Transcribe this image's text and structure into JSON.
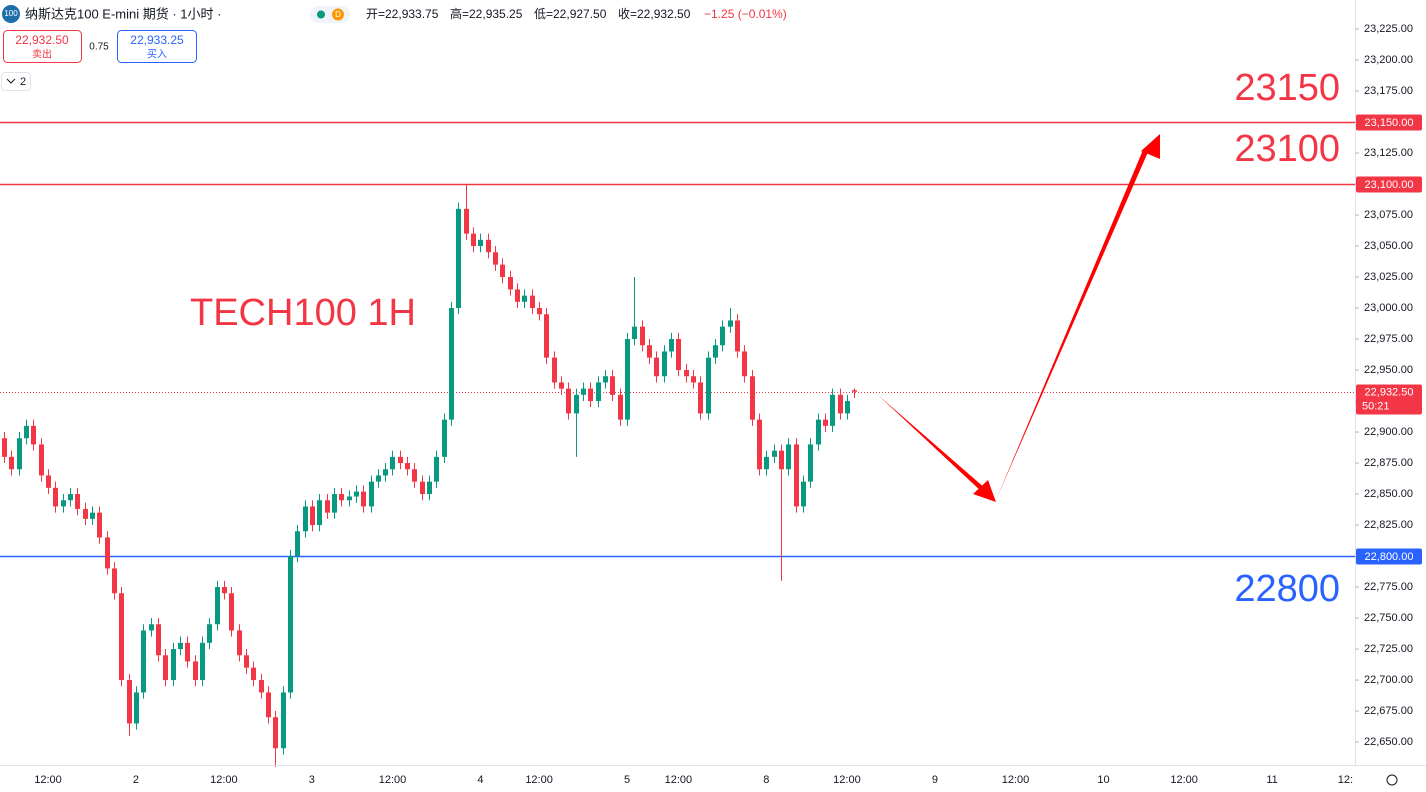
{
  "header": {
    "icon": "100",
    "title": "纳斯达克100 E-mini 期货 · 1小时 ·",
    "badge": "D",
    "ohlc": [
      "开=22,933.75",
      "高=22,935.25",
      "低=22,927.50",
      "收=22,932.50"
    ],
    "change": "−1.25 (−0.01%)",
    "sell_price": "22,932.50",
    "sell_label": "卖出",
    "spread": "0.75",
    "buy_price": "22,933.25",
    "buy_label": "买入",
    "indicators": "2"
  },
  "chart_data": {
    "type": "candlestick",
    "up_color": "#089981",
    "down_color": "#f23645",
    "annotations": [
      "TECH100 1H",
      "23150",
      "23100",
      "22800"
    ],
    "categories": [
      null,
      null,
      null,
      null,
      null,
      null,
      "12:00",
      null,
      null,
      null,
      null,
      null,
      null,
      null,
      null,
      null,
      null,
      null,
      "2",
      null,
      null,
      null,
      null,
      null,
      null,
      null,
      null,
      null,
      null,
      null,
      "12:00",
      null,
      null,
      null,
      null,
      null,
      null,
      null,
      null,
      null,
      null,
      null,
      "3",
      null,
      null,
      null,
      null,
      null,
      null,
      null,
      null,
      null,
      null,
      "12:00",
      null,
      null,
      null,
      null,
      null,
      null,
      null,
      null,
      null,
      null,
      null,
      "4",
      null,
      null,
      null,
      null,
      null,
      null,
      null,
      "12:00",
      null,
      null,
      null,
      null,
      null,
      null,
      null,
      null,
      null,
      null,
      null,
      "5",
      null,
      null,
      null,
      null,
      null,
      null,
      "12:00",
      null,
      null,
      null,
      null,
      null,
      null,
      null,
      null,
      null,
      null,
      null,
      "8",
      null,
      null,
      null,
      null,
      null,
      null,
      null,
      null,
      null,
      null,
      "12:00",
      null,
      null,
      null,
      null,
      null,
      null,
      null,
      null,
      null,
      null,
      null,
      "9",
      null,
      null,
      null,
      null,
      null,
      null,
      null,
      null,
      null,
      null,
      "12:00",
      null,
      null,
      null,
      null,
      null,
      null,
      null,
      null,
      null,
      null,
      null,
      "10",
      null,
      null,
      null,
      null,
      null,
      null,
      null,
      null,
      null,
      null,
      "12:00",
      null,
      null,
      null,
      null,
      null,
      null,
      null,
      null,
      null,
      null,
      null,
      "11",
      null,
      null,
      null,
      null,
      null,
      null,
      null,
      null,
      null,
      "12:",
      null
    ],
    "open": [
      22895,
      22880,
      22870,
      22895,
      22905,
      22890,
      22865,
      22855,
      22840,
      22845,
      22850,
      22838,
      22830,
      22835,
      22815,
      22790,
      22770,
      22700,
      22665,
      22690,
      22740,
      22745,
      22720,
      22700,
      22725,
      22730,
      22715,
      22700,
      22730,
      22745,
      22775,
      22770,
      22740,
      22720,
      22710,
      22700,
      22690,
      22670,
      22645,
      22690,
      22800,
      22820,
      22840,
      22825,
      22845,
      22835,
      22850,
      22845,
      22848,
      22852,
      22840,
      22860,
      22865,
      22870,
      22880,
      22875,
      22870,
      22860,
      22850,
      22860,
      22880,
      22910,
      23000,
      23080,
      23060,
      23050,
      23055,
      23045,
      23035,
      23025,
      23015,
      23005,
      23010,
      23000,
      22995,
      22960,
      22940,
      22935,
      22915,
      22930,
      22935,
      22925,
      22940,
      22945,
      22930,
      22910,
      22975,
      22985,
      22970,
      22960,
      22945,
      22965,
      22975,
      22950,
      22945,
      22940,
      22915,
      22960,
      22970,
      22985,
      22990,
      22965,
      22945,
      22910,
      22870,
      22880,
      22885,
      22870,
      22890,
      22840,
      22860,
      22890,
      22910,
      22905,
      22930,
      22915,
      22933.75,
      null,
      null,
      null,
      null,
      null,
      null,
      null,
      null,
      null,
      null,
      null,
      null,
      null,
      null,
      null,
      null,
      null,
      null,
      null,
      null,
      null,
      null,
      null,
      null,
      null,
      null,
      null,
      null,
      null,
      null,
      null,
      null,
      null,
      null,
      null,
      null,
      null,
      null,
      null,
      null,
      null,
      null,
      null,
      null,
      null,
      null,
      null,
      null,
      null,
      null,
      null,
      null,
      null,
      null,
      null,
      null,
      null,
      null,
      null,
      null,
      null,
      null,
      null,
      null,
      null,
      null,
      null,
      null
    ],
    "high": [
      22900,
      22885,
      22900,
      22910,
      22910,
      22895,
      22870,
      22860,
      22850,
      22855,
      22855,
      22843,
      22840,
      22840,
      22820,
      22795,
      22775,
      22705,
      22695,
      22745,
      22750,
      22750,
      22725,
      22730,
      22735,
      22735,
      22720,
      22735,
      22750,
      22780,
      22780,
      22775,
      22745,
      22725,
      22715,
      22705,
      22695,
      22675,
      22695,
      22805,
      22825,
      22845,
      22845,
      22850,
      22850,
      22855,
      22855,
      22853,
      22857,
      22857,
      22865,
      22870,
      22875,
      22885,
      22885,
      22880,
      22875,
      22865,
      22865,
      22885,
      22915,
      23005,
      23085,
      23100,
      23065,
      23060,
      23060,
      23050,
      23040,
      23030,
      23020,
      23015,
      23015,
      23005,
      23000,
      22965,
      22945,
      22940,
      22935,
      22940,
      22940,
      22945,
      22950,
      22950,
      22935,
      22980,
      23025,
      22990,
      22975,
      22965,
      22970,
      22980,
      22980,
      22955,
      22950,
      22945,
      22965,
      22975,
      22990,
      23000,
      22995,
      22970,
      22950,
      22915,
      22885,
      22890,
      22890,
      22895,
      22895,
      22865,
      22895,
      22915,
      22915,
      22935,
      22935,
      22930,
      22935.25,
      null,
      null,
      null,
      null,
      null,
      null,
      null,
      null,
      null,
      null,
      null,
      null,
      null,
      null,
      null,
      null,
      null,
      null,
      null,
      null,
      null,
      null,
      null,
      null,
      null,
      null,
      null,
      null,
      null,
      null,
      null,
      null,
      null,
      null,
      null,
      null,
      null,
      null,
      null,
      null,
      null,
      null,
      null,
      null,
      null,
      null,
      null,
      null,
      null,
      null,
      null,
      null,
      null,
      null,
      null,
      null,
      null,
      null,
      null,
      null,
      null,
      null,
      null,
      null,
      null,
      null,
      null,
      null
    ],
    "low": [
      22875,
      22865,
      22865,
      22890,
      22885,
      22860,
      22850,
      22835,
      22835,
      22840,
      22833,
      22825,
      22825,
      22810,
      22785,
      22765,
      22695,
      22655,
      22660,
      22685,
      22735,
      22715,
      22695,
      22695,
      22720,
      22710,
      22695,
      22695,
      22725,
      22740,
      22765,
      22735,
      22715,
      22705,
      22695,
      22685,
      22665,
      22630,
      22640,
      22685,
      22795,
      22815,
      22820,
      22820,
      22830,
      22830,
      22840,
      22840,
      22843,
      22835,
      22835,
      22855,
      22860,
      22865,
      22870,
      22865,
      22855,
      22845,
      22845,
      22855,
      22875,
      22905,
      22995,
      23055,
      23045,
      23045,
      23040,
      23030,
      23020,
      23010,
      23000,
      23000,
      22995,
      22990,
      22955,
      22935,
      22930,
      22910,
      22880,
      22925,
      22920,
      22920,
      22935,
      22925,
      22905,
      22905,
      22970,
      22965,
      22955,
      22940,
      22940,
      22960,
      22945,
      22940,
      22935,
      22910,
      22910,
      22955,
      22965,
      22980,
      22960,
      22940,
      22905,
      22865,
      22865,
      22875,
      22780,
      22865,
      22835,
      22835,
      22855,
      22885,
      22900,
      22900,
      22910,
      22910,
      22927.5,
      null,
      null,
      null,
      null,
      null,
      null,
      null,
      null,
      null,
      null,
      null,
      null,
      null,
      null,
      null,
      null,
      null,
      null,
      null,
      null,
      null,
      null,
      null,
      null,
      null,
      null,
      null,
      null,
      null,
      null,
      null,
      null,
      null,
      null,
      null,
      null,
      null,
      null,
      null,
      null,
      null,
      null,
      null,
      null,
      null,
      null,
      null,
      null,
      null,
      null,
      null,
      null,
      null,
      null,
      null,
      null,
      null,
      null,
      null,
      null,
      null,
      null,
      null,
      null,
      null,
      null,
      null,
      null
    ],
    "close": [
      22880,
      22870,
      22895,
      22905,
      22890,
      22865,
      22855,
      22840,
      22845,
      22850,
      22838,
      22830,
      22835,
      22815,
      22790,
      22770,
      22700,
      22665,
      22690,
      22740,
      22745,
      22720,
      22700,
      22725,
      22730,
      22715,
      22700,
      22730,
      22745,
      22775,
      22770,
      22740,
      22720,
      22710,
      22700,
      22690,
      22670,
      22645,
      22690,
      22800,
      22820,
      22840,
      22825,
      22845,
      22835,
      22850,
      22845,
      22848,
      22852,
      22840,
      22860,
      22865,
      22870,
      22880,
      22875,
      22870,
      22860,
      22850,
      22860,
      22880,
      22910,
      23000,
      23080,
      23060,
      23050,
      23055,
      23045,
      23035,
      23025,
      23015,
      23005,
      23010,
      23000,
      22995,
      22960,
      22940,
      22935,
      22915,
      22930,
      22935,
      22925,
      22940,
      22945,
      22930,
      22910,
      22975,
      22985,
      22970,
      22960,
      22945,
      22965,
      22975,
      22950,
      22945,
      22940,
      22915,
      22960,
      22970,
      22985,
      22990,
      22965,
      22945,
      22910,
      22870,
      22880,
      22885,
      22870,
      22890,
      22840,
      22860,
      22890,
      22910,
      22905,
      22930,
      22915,
      22925,
      22932.5,
      null,
      null,
      null,
      null,
      null,
      null,
      null,
      null,
      null,
      null,
      null,
      null,
      null,
      null,
      null,
      null,
      null,
      null,
      null,
      null,
      null,
      null,
      null,
      null,
      null,
      null,
      null,
      null,
      null,
      null,
      null,
      null,
      null,
      null,
      null,
      null,
      null,
      null,
      null,
      null,
      null,
      null,
      null,
      null,
      null,
      null,
      null,
      null,
      null,
      null,
      null,
      null,
      null,
      null,
      null,
      null,
      null,
      null,
      null,
      null,
      null,
      null,
      null,
      null,
      null,
      null,
      null,
      null
    ],
    "ylim": [
      22631.5,
      23248.4
    ],
    "yticks": [
      {
        "value": 22650,
        "label": "22,650.00"
      },
      {
        "value": 22675,
        "label": "22,675.00"
      },
      {
        "value": 22700,
        "label": "22,700.00"
      },
      {
        "value": 22725,
        "label": "22,725.00"
      },
      {
        "value": 22750,
        "label": "22,750.00"
      },
      {
        "value": 22775,
        "label": "22,775.00"
      },
      {
        "value": 22800,
        "label": "22,800.00"
      },
      {
        "value": 22825,
        "label": "22,825.00"
      },
      {
        "value": 22850,
        "label": "22,850.00"
      },
      {
        "value": 22875,
        "label": "22,875.00"
      },
      {
        "value": 22900,
        "label": "22,900.00"
      },
      {
        "value": 22925,
        "label": "22,925.00"
      },
      {
        "value": 22950,
        "label": "22,950.00"
      },
      {
        "value": 22975,
        "label": "22,975.00"
      },
      {
        "value": 23000,
        "label": "23,000.00"
      },
      {
        "value": 23025,
        "label": "23,025.00"
      },
      {
        "value": 23050,
        "label": "23,050.00"
      },
      {
        "value": 23075,
        "label": "23,075.00"
      },
      {
        "value": 23100,
        "label": "23,100.00"
      },
      {
        "value": 23125,
        "label": "23,125.00"
      },
      {
        "value": 23150,
        "label": "23,150.00"
      },
      {
        "value": 23175,
        "label": "23,175.00"
      },
      {
        "value": 23200,
        "label": "23,200.00"
      },
      {
        "value": 23225,
        "label": "23,225.00"
      }
    ],
    "hlines": [
      {
        "value": 23150,
        "label": "23,150.00",
        "color": "#f23645"
      },
      {
        "value": 23100,
        "label": "23,100.00",
        "color": "#f23645"
      },
      {
        "value": 22800,
        "label": "22,800.00",
        "color": "#2962ff"
      }
    ],
    "last_price": {
      "value": 22932.5,
      "label": "22,932.50",
      "countdown": "50:21",
      "color": "#f23645"
    }
  }
}
